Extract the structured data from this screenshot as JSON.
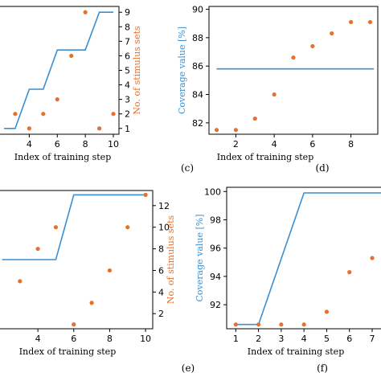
{
  "colors": {
    "line": "#3a8fd0",
    "dots": "#e8702a",
    "axis_text": "#000000"
  },
  "chart_data": [
    {
      "id": "c",
      "panel_label": "(c)",
      "type": "line+scatter",
      "xlabel": "Index of training step",
      "ylabel_left": "",
      "ylabel_right": "No. of stimulus sets",
      "xticks": [
        "4",
        "6",
        "8",
        "10"
      ],
      "yticks_right": [
        "1",
        "2",
        "3",
        "4",
        "5",
        "6",
        "7",
        "8",
        "9"
      ],
      "series": [
        {
          "kind": "line",
          "axis": "left",
          "x": [
            2.2,
            3,
            4,
            5,
            6,
            7,
            8,
            9,
            10
          ],
          "y": [
            1.0,
            1.0,
            3.7,
            3.7,
            6.4,
            6.4,
            6.4,
            9.0,
            9.0
          ]
        },
        {
          "kind": "scatter",
          "axis": "right",
          "x": [
            3,
            4,
            5,
            6,
            7,
            8,
            9,
            10
          ],
          "y": [
            2,
            1,
            2,
            3,
            6,
            9,
            1,
            2
          ]
        }
      ]
    },
    {
      "id": "d",
      "panel_label": "(d)",
      "type": "line+scatter",
      "xlabel": "Index of training step",
      "ylabel_left": "Coverage value [%]",
      "ylabel_right": "",
      "xticks": [
        "2",
        "4",
        "6",
        "8"
      ],
      "yticks_left": [
        "82",
        "84",
        "86",
        "88",
        "90"
      ],
      "series": [
        {
          "kind": "line",
          "axis": "left",
          "x": [
            1,
            9.2
          ],
          "y": [
            85.8,
            85.8
          ]
        },
        {
          "kind": "scatter",
          "axis": "left",
          "x": [
            1,
            2,
            3,
            4,
            5,
            6,
            7,
            8,
            9
          ],
          "y": [
            81.5,
            81.5,
            82.3,
            84.0,
            86.6,
            87.4,
            88.3,
            89.1,
            89.1
          ]
        }
      ]
    },
    {
      "id": "e",
      "panel_label": "(e)",
      "type": "line+scatter",
      "xlabel": "Index of training step",
      "ylabel_left": "",
      "ylabel_right": "No. of stimulus sets",
      "xticks": [
        "4",
        "6",
        "8",
        "10"
      ],
      "yticks_right": [
        "2",
        "4",
        "6",
        "8",
        "10",
        "12"
      ],
      "series": [
        {
          "kind": "line",
          "axis": "left",
          "x": [
            2,
            3,
            4,
            5,
            6,
            7,
            8,
            9,
            10
          ],
          "y": [
            7.0,
            7.0,
            7.0,
            7.0,
            13.0,
            13.0,
            13.0,
            13.0,
            13.0
          ]
        },
        {
          "kind": "scatter",
          "axis": "right",
          "x": [
            3,
            4,
            5,
            6,
            7,
            8,
            9,
            10
          ],
          "y": [
            5,
            8,
            10,
            1,
            3,
            6,
            10,
            13
          ]
        }
      ]
    },
    {
      "id": "f",
      "panel_label": "(f)",
      "type": "line+scatter",
      "xlabel": "Index of training step",
      "ylabel_left": "Coverage value [%]",
      "ylabel_right": "",
      "xticks": [
        "1",
        "2",
        "3",
        "4",
        "5",
        "6",
        "7"
      ],
      "yticks_left": [
        "92",
        "94",
        "96",
        "98",
        "100"
      ],
      "series": [
        {
          "kind": "line",
          "axis": "left",
          "x": [
            1,
            2,
            4,
            8
          ],
          "y": [
            90.6,
            90.6,
            99.9,
            99.9
          ]
        },
        {
          "kind": "scatter",
          "axis": "left",
          "x": [
            1,
            2,
            3,
            4,
            5,
            6,
            7
          ],
          "y": [
            90.6,
            90.6,
            90.6,
            90.6,
            91.5,
            94.3,
            95.3
          ]
        }
      ]
    }
  ]
}
